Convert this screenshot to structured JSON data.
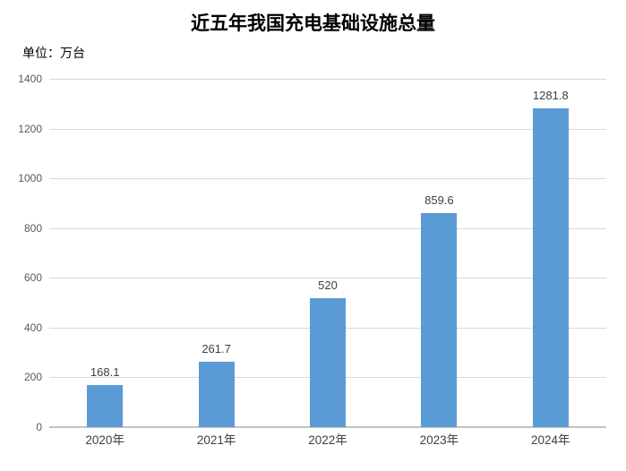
{
  "title": "近五年我国充电基础设施总量",
  "unit_label": "单位：万台",
  "colors": {
    "bar": "#5b9bd5",
    "gridline": "#d9d9d9",
    "axis_line": "#c2c2c2",
    "y_tick_label": "#595959",
    "x_tick_label": "#404040",
    "data_label": "#404040",
    "title": "#000000",
    "background": "#ffffff"
  },
  "chart_data": {
    "type": "bar",
    "title": "近五年我国充电基础设施总量",
    "unit": "单位：万台",
    "categories": [
      "2020年",
      "2021年",
      "2022年",
      "2023年",
      "2024年"
    ],
    "values": [
      168.1,
      261.7,
      520,
      859.6,
      1281.8
    ],
    "data_labels": [
      "168.1",
      "261.7",
      "520",
      "859.6",
      "1281.8"
    ],
    "xlabel": "",
    "ylabel": "",
    "ylim": [
      0,
      1400
    ],
    "ytick_step": 200,
    "yticks": [
      0,
      200,
      400,
      600,
      800,
      1000,
      1200,
      1400
    ],
    "grid": true,
    "legend_position": "none",
    "bar_color": "#5b9bd5"
  }
}
